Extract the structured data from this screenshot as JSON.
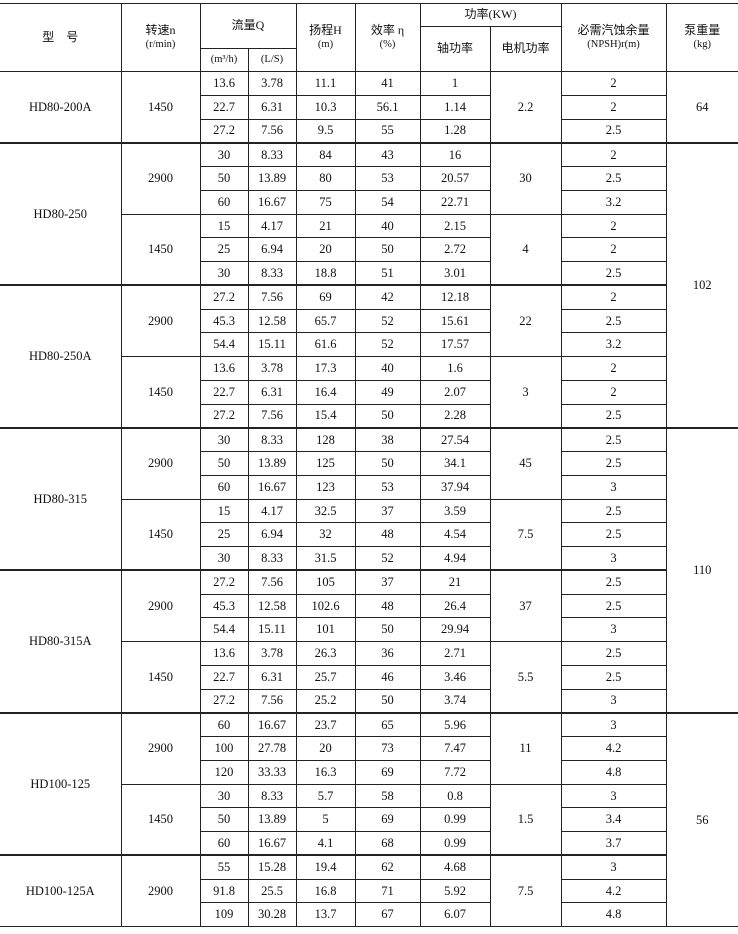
{
  "header": {
    "model": "型　号",
    "speed": "转速n",
    "speed_unit": "(r/min)",
    "flow": "流量Q",
    "flow_unit_m3h": "(m³/h)",
    "flow_unit_ls": "(L/S)",
    "head": "扬程H",
    "head_unit": "(m)",
    "efficiency": "效率 η",
    "efficiency_unit": "(%)",
    "power": "功率(KW)",
    "shaft_power": "轴功率",
    "motor_power": "电机功率",
    "npsh": "必需汽蚀余量",
    "npsh_unit": "(NPSH)r(m)",
    "weight": "泵重量",
    "weight_unit": "(kg)"
  },
  "models": [
    {
      "name": "HD80-200A",
      "weight": "64",
      "weight_span_models": 1,
      "speeds": [
        {
          "rpm": "1450",
          "motor": "2.2",
          "rows": [
            [
              "13.6",
              "3.78",
              "11.1",
              "41",
              "1",
              "2"
            ],
            [
              "22.7",
              "6.31",
              "10.3",
              "56.1",
              "1.14",
              "2"
            ],
            [
              "27.2",
              "7.56",
              "9.5",
              "55",
              "1.28",
              "2.5"
            ]
          ]
        }
      ]
    },
    {
      "name": "HD80-250",
      "weight": "102",
      "weight_span_models": 2,
      "speeds": [
        {
          "rpm": "2900",
          "motor": "30",
          "rows": [
            [
              "30",
              "8.33",
              "84",
              "43",
              "16",
              "2"
            ],
            [
              "50",
              "13.89",
              "80",
              "53",
              "20.57",
              "2.5"
            ],
            [
              "60",
              "16.67",
              "75",
              "54",
              "22.71",
              "3.2"
            ]
          ]
        },
        {
          "rpm": "1450",
          "motor": "4",
          "rows": [
            [
              "15",
              "4.17",
              "21",
              "40",
              "2.15",
              "2"
            ],
            [
              "25",
              "6.94",
              "20",
              "50",
              "2.72",
              "2"
            ],
            [
              "30",
              "8.33",
              "18.8",
              "51",
              "3.01",
              "2.5"
            ]
          ]
        }
      ]
    },
    {
      "name": "HD80-250A",
      "speeds": [
        {
          "rpm": "2900",
          "motor": "22",
          "rows": [
            [
              "27.2",
              "7.56",
              "69",
              "42",
              "12.18",
              "2"
            ],
            [
              "45.3",
              "12.58",
              "65.7",
              "52",
              "15.61",
              "2.5"
            ],
            [
              "54.4",
              "15.11",
              "61.6",
              "52",
              "17.57",
              "3.2"
            ]
          ]
        },
        {
          "rpm": "1450",
          "motor": "3",
          "rows": [
            [
              "13.6",
              "3.78",
              "17.3",
              "40",
              "1.6",
              "2"
            ],
            [
              "22.7",
              "6.31",
              "16.4",
              "49",
              "2.07",
              "2"
            ],
            [
              "27.2",
              "7.56",
              "15.4",
              "50",
              "2.28",
              "2.5"
            ]
          ]
        }
      ]
    },
    {
      "name": "HD80-315",
      "weight": "110",
      "weight_span_models": 2,
      "speeds": [
        {
          "rpm": "2900",
          "motor": "45",
          "rows": [
            [
              "30",
              "8.33",
              "128",
              "38",
              "27.54",
              "2.5"
            ],
            [
              "50",
              "13.89",
              "125",
              "50",
              "34.1",
              "2.5"
            ],
            [
              "60",
              "16.67",
              "123",
              "53",
              "37.94",
              "3"
            ]
          ]
        },
        {
          "rpm": "1450",
          "motor": "7.5",
          "rows": [
            [
              "15",
              "4.17",
              "32.5",
              "37",
              "3.59",
              "2.5"
            ],
            [
              "25",
              "6.94",
              "32",
              "48",
              "4.54",
              "2.5"
            ],
            [
              "30",
              "8.33",
              "31.5",
              "52",
              "4.94",
              "3"
            ]
          ]
        }
      ]
    },
    {
      "name": "HD80-315A",
      "speeds": [
        {
          "rpm": "2900",
          "motor": "37",
          "rows": [
            [
              "27.2",
              "7.56",
              "105",
              "37",
              "21",
              "2.5"
            ],
            [
              "45.3",
              "12.58",
              "102.6",
              "48",
              "26.4",
              "2.5"
            ],
            [
              "54.4",
              "15.11",
              "101",
              "50",
              "29.94",
              "3"
            ]
          ]
        },
        {
          "rpm": "1450",
          "motor": "5.5",
          "rows": [
            [
              "13.6",
              "3.78",
              "26.3",
              "36",
              "2.71",
              "2.5"
            ],
            [
              "22.7",
              "6.31",
              "25.7",
              "46",
              "3.46",
              "2.5"
            ],
            [
              "27.2",
              "7.56",
              "25.2",
              "50",
              "3.74",
              "3"
            ]
          ]
        }
      ]
    },
    {
      "name": "HD100-125",
      "weight": "56",
      "weight_span_models": 2,
      "speeds": [
        {
          "rpm": "2900",
          "motor": "11",
          "rows": [
            [
              "60",
              "16.67",
              "23.7",
              "65",
              "5.96",
              "3"
            ],
            [
              "100",
              "27.78",
              "20",
              "73",
              "7.47",
              "4.2"
            ],
            [
              "120",
              "33.33",
              "16.3",
              "69",
              "7.72",
              "4.8"
            ]
          ]
        },
        {
          "rpm": "1450",
          "motor": "1.5",
          "rows": [
            [
              "30",
              "8.33",
              "5.7",
              "58",
              "0.8",
              "3"
            ],
            [
              "50",
              "13.89",
              "5",
              "69",
              "0.99",
              "3.4"
            ],
            [
              "60",
              "16.67",
              "4.1",
              "68",
              "0.99",
              "3.7"
            ]
          ]
        }
      ]
    },
    {
      "name": "HD100-125A",
      "speeds": [
        {
          "rpm": "2900",
          "motor": "7.5",
          "rows": [
            [
              "55",
              "15.28",
              "19.4",
              "62",
              "4.68",
              "3"
            ],
            [
              "91.8",
              "25.5",
              "16.8",
              "71",
              "5.92",
              "4.2"
            ],
            [
              "109",
              "30.28",
              "13.7",
              "67",
              "6.07",
              "4.8"
            ]
          ]
        }
      ]
    }
  ]
}
